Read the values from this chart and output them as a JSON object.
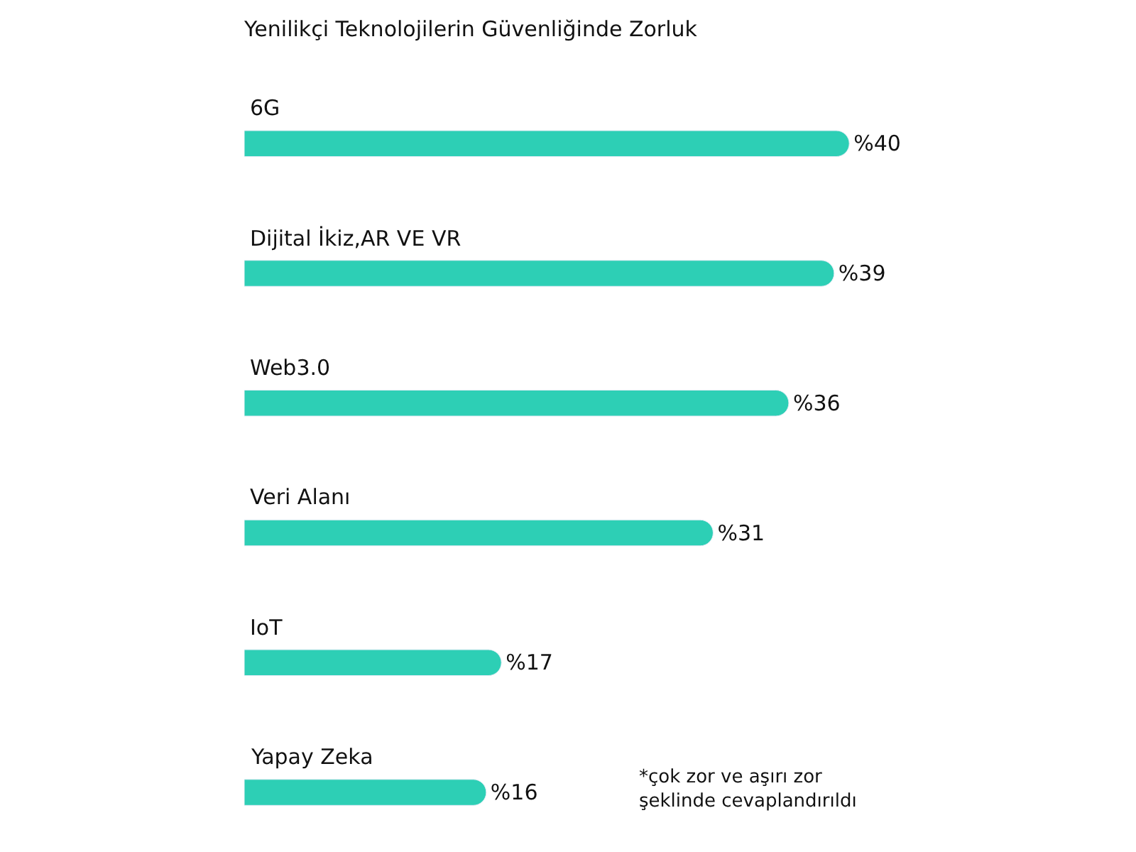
{
  "chart_data": {
    "type": "bar",
    "orientation": "horizontal",
    "title": "Yenilikçi Teknolojilerin Güvenliğinde Zorluk",
    "categories": [
      "6G",
      "Dijital İkiz,AR VE VR",
      "Web3.0",
      "Veri Alanı",
      "IoT",
      "Yapay Zeka"
    ],
    "values": [
      40,
      39,
      36,
      31,
      17,
      16
    ],
    "value_labels": [
      "%40",
      "%39",
      "%36",
      "%31",
      "%17",
      "%16"
    ],
    "color": "#2dcfb5",
    "tick_labels": false,
    "annotations": [
      "*çok zor ve aşırı zor\nşeklinde cevaplandırıldı"
    ]
  }
}
